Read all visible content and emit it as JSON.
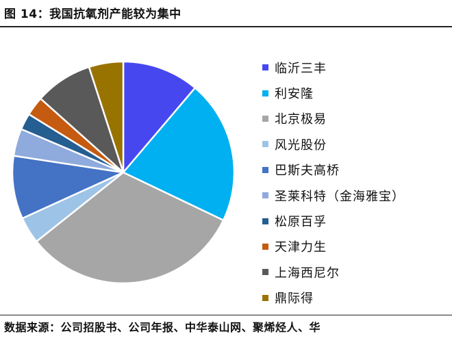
{
  "figure": {
    "title": "图 14：我国抗氧剂产能较为集中",
    "source": "数据来源：公司招股书、公司年报、中华泰山网、聚烯烃人、华"
  },
  "chart_data": {
    "type": "pie",
    "legend_position": "right",
    "slices": [
      {
        "label": "临沂三丰",
        "value": 11.2,
        "color": "#4747f0"
      },
      {
        "label": "利安隆",
        "value": 20.9,
        "color": "#00b0f0"
      },
      {
        "label": "北京极易",
        "value": 32.2,
        "color": "#a6a6a6"
      },
      {
        "label": "风光股份",
        "value": 3.9,
        "color": "#9dc3e6"
      },
      {
        "label": "巴斯夫高桥",
        "value": 9.2,
        "color": "#4472c4"
      },
      {
        "label": "圣莱科特（金海雅宝）",
        "value": 4.0,
        "color": "#8faadc"
      },
      {
        "label": "松原百孚",
        "value": 2.4,
        "color": "#255e91"
      },
      {
        "label": "天津力生",
        "value": 2.8,
        "color": "#c55a11"
      },
      {
        "label": "上海西尼尔",
        "value": 8.4,
        "color": "#595959"
      },
      {
        "label": "鼎际得",
        "value": 5.0,
        "color": "#997300"
      }
    ]
  }
}
